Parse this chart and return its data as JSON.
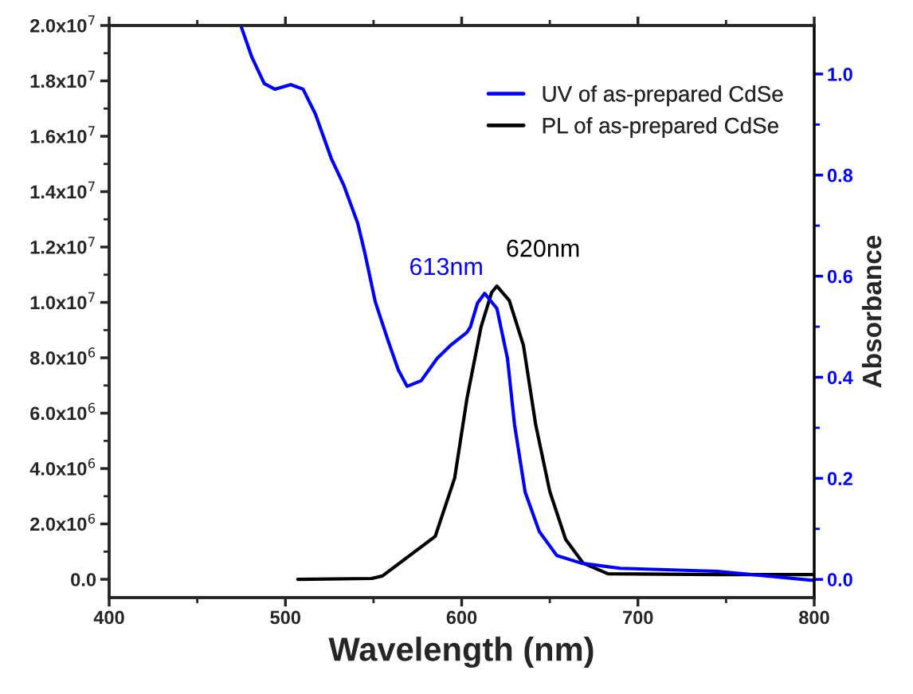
{
  "chart_data": {
    "type": "line",
    "xlabel": "Wavelength (nm)",
    "y2label": "Absorbance",
    "xlim": [
      400,
      800
    ],
    "xticks": [
      400,
      500,
      600,
      700,
      800
    ],
    "ylim": [
      -660000,
      20000000
    ],
    "yticks": [
      {
        "value": 0,
        "label": "0.0"
      },
      {
        "value": 2000000,
        "label": "2.0x10$^{6}$"
      },
      {
        "value": 4000000,
        "label": "4.0x10$^{6}$"
      },
      {
        "value": 6000000,
        "label": "6.0x10$^{6}$"
      },
      {
        "value": 8000000,
        "label": "8.0x10$^{6}$"
      },
      {
        "value": 10000000,
        "label": "1.0x10$^{7}$"
      },
      {
        "value": 12000000,
        "label": "1.2x10$^{7}$"
      },
      {
        "value": 14000000,
        "label": "1.4x10$^{7}$"
      },
      {
        "value": 16000000,
        "label": "1.6x10$^{7}$"
      },
      {
        "value": 18000000,
        "label": "1.8x10$^{7}$"
      },
      {
        "value": 20000000,
        "label": "2.0x10$^{7}$"
      }
    ],
    "y2lim": [
      -0.036,
      1.096
    ],
    "y2ticks": [
      {
        "value": 0,
        "label": "0.0"
      },
      {
        "value": 0.2,
        "label": "0.2"
      },
      {
        "value": 0.4,
        "label": "0.4"
      },
      {
        "value": 0.6,
        "label": "0.6"
      },
      {
        "value": 0.8,
        "label": "0.8"
      },
      {
        "value": 1.0,
        "label": "1.0"
      }
    ],
    "legend": "top right",
    "grid": false,
    "series": [
      {
        "name": "UV of as-prepared CdSe",
        "color": "#0000ff",
        "axis": "y2",
        "x": [
          475,
          481,
          488,
          494,
          503,
          510,
          517,
          526,
          533,
          541,
          545,
          551,
          558,
          564,
          569,
          577,
          586,
          594,
          603,
          605,
          609,
          613,
          620,
          626,
          630,
          636,
          644,
          654,
          668,
          690,
          745,
          800
        ],
        "values": [
          1.093,
          1.033,
          0.981,
          0.97,
          0.979,
          0.97,
          0.921,
          0.833,
          0.781,
          0.705,
          0.647,
          0.549,
          0.475,
          0.415,
          0.382,
          0.393,
          0.437,
          0.464,
          0.489,
          0.5,
          0.547,
          0.566,
          0.536,
          0.437,
          0.306,
          0.173,
          0.095,
          0.047,
          0.032,
          0.022,
          0.016,
          -0.002
        ]
      },
      {
        "name": "PL of as-prepared CdSe",
        "color": "#000000",
        "x": [
          507,
          549,
          555,
          585,
          596,
          603,
          611,
          617,
          620,
          627,
          635,
          642,
          650,
          659,
          669,
          683,
          745,
          800
        ],
        "values": [
          0,
          30000,
          120000,
          1550000,
          3650000,
          6530000,
          9120000,
          10360000,
          10590000,
          10070000,
          8460000,
          5580000,
          3170000,
          1440000,
          580000,
          200000,
          170000,
          170000
        ]
      }
    ],
    "annotations": [
      {
        "text": "613nm",
        "x": 613,
        "y": 10330000
      },
      {
        "text": "620nm",
        "x": 620,
        "y": 10590000
      }
    ]
  }
}
